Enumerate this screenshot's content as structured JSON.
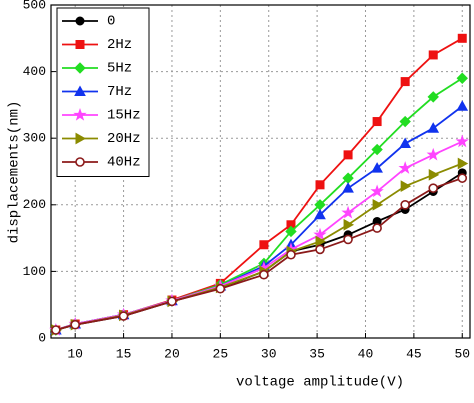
{
  "chart_data": {
    "type": "line",
    "xlabel": "voltage amplitude(V)",
    "ylabel": "displacements(nm)",
    "x": [
      8,
      10,
      15,
      20,
      25,
      29.5,
      32.3,
      35.3,
      38.2,
      41.2,
      44.1,
      47,
      50
    ],
    "series": [
      {
        "name": "0",
        "color": "#000000",
        "marker": "circle",
        "values": [
          12,
          20,
          33,
          55,
          75,
          100,
          130,
          140,
          155,
          175,
          193,
          220,
          248
        ]
      },
      {
        "name": "2Hz",
        "color": "#ee1111",
        "marker": "square",
        "values": [
          12,
          21,
          35,
          57,
          82,
          140,
          170,
          230,
          275,
          325,
          385,
          425,
          450
        ]
      },
      {
        "name": "5Hz",
        "color": "#22dd22",
        "marker": "diamond",
        "values": [
          12,
          21,
          35,
          56,
          80,
          112,
          160,
          200,
          240,
          283,
          325,
          362,
          390
        ]
      },
      {
        "name": "7Hz",
        "color": "#1133ee",
        "marker": "triangle",
        "values": [
          12,
          21,
          35,
          56,
          78,
          108,
          140,
          185,
          225,
          255,
          292,
          315,
          348
        ]
      },
      {
        "name": "15Hz",
        "color": "#ff44ff",
        "marker": "star",
        "values": [
          12,
          21,
          35,
          56,
          78,
          105,
          133,
          155,
          188,
          220,
          255,
          275,
          295
        ]
      },
      {
        "name": "20Hz",
        "color": "#8b8b00",
        "marker": "right-triangle",
        "values": [
          12,
          20,
          34,
          55,
          76,
          100,
          130,
          145,
          170,
          200,
          228,
          245,
          262
        ]
      },
      {
        "name": "40Hz",
        "color": "#8b1a1a",
        "marker": "half-circle",
        "values": [
          12,
          20,
          33,
          55,
          74,
          95,
          125,
          133,
          148,
          165,
          200,
          225,
          240
        ]
      }
    ],
    "xlim": [
      7.5,
      50.8
    ],
    "ylim": [
      0,
      500
    ],
    "xticks": [
      10,
      15,
      20,
      25,
      30,
      35,
      40,
      45,
      50
    ],
    "yticks": [
      0,
      100,
      200,
      300,
      400,
      500
    ],
    "grid": true,
    "legend": "upper-left"
  }
}
